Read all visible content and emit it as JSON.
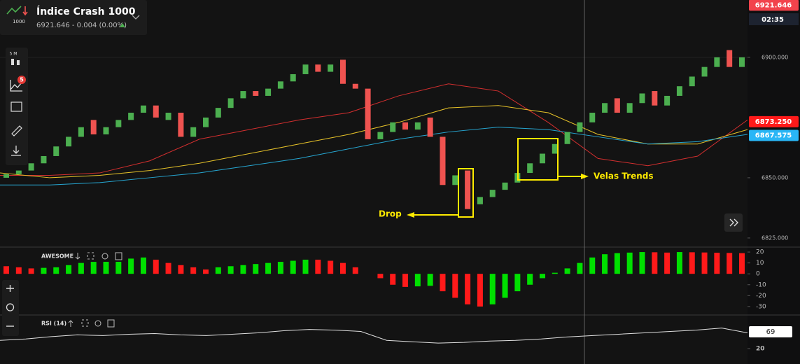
{
  "header": {
    "icon_label": "1000",
    "title": "Índice Crash 1000",
    "quote": "6921.646 - 0.004 (0.00%)"
  },
  "toolbar": {
    "timeframe": "5 M",
    "badge": "5"
  },
  "countdown": "02:35",
  "chart_data": [
    {
      "type": "candlestick",
      "open": [
        6850,
        6851.5,
        6853,
        6856,
        6859,
        6863,
        6867,
        6874,
        6868,
        6871,
        6874,
        6877,
        6880,
        6874,
        6877,
        6867,
        6871,
        6875,
        6879,
        6883,
        6886,
        6884,
        6887,
        6890,
        6893,
        6897,
        6894,
        6899,
        6889,
        6887,
        6866,
        6869,
        6873,
        6870,
        6875,
        6867,
        6847,
        6853,
        6839,
        6842,
        6845,
        6848,
        6852,
        6856,
        6860,
        6864,
        6869,
        6873,
        6877,
        6883,
        6877,
        6881,
        6886,
        6880,
        6884,
        6888,
        6892,
        6896,
        6903,
        6896
      ],
      "close": [
        6851.5,
        6853,
        6856,
        6859,
        6863,
        6867,
        6871,
        6868,
        6871,
        6874,
        6877,
        6880,
        6875,
        6877,
        6867,
        6871,
        6875,
        6879,
        6883,
        6886,
        6884,
        6887,
        6890,
        6893,
        6897,
        6894,
        6897,
        6889,
        6887,
        6866,
        6869,
        6873,
        6870,
        6873,
        6867,
        6847,
        6851,
        6837,
        6842,
        6845,
        6848,
        6852,
        6856,
        6860,
        6864,
        6869,
        6873,
        6877,
        6881,
        6877,
        6881,
        6885,
        6880,
        6884,
        6888,
        6892,
        6896,
        6900,
        6896,
        6900
      ],
      "up_color": "#4caf50",
      "down_color": "#ef5350",
      "lines": [
        {
          "color": "#d32f2f",
          "values": [
            6851,
            6851,
            6852,
            6857,
            6866,
            6870,
            6874,
            6877,
            6884,
            6889,
            6886,
            6873,
            6858,
            6855,
            6859,
            6874
          ]
        },
        {
          "color": "#e6c229",
          "values": [
            6852,
            6850,
            6851,
            6853,
            6856,
            6860,
            6864,
            6868,
            6873,
            6879,
            6880,
            6877,
            6868,
            6864,
            6864,
            6870
          ]
        },
        {
          "color": "#26a6d1",
          "values": [
            6847,
            6847,
            6848,
            6850,
            6852,
            6855,
            6858,
            6862,
            6866,
            6869,
            6871,
            6870,
            6867,
            6864,
            6865,
            6868
          ]
        }
      ],
      "ylim": [
        6821.5,
        6923.8
      ],
      "yticks": [
        {
          "value": 6900,
          "label": "6900.000"
        },
        {
          "value": 6850,
          "label": "6850.000"
        },
        {
          "value": 6825,
          "label": "6825.000"
        }
      ],
      "price_tags": [
        {
          "value": 6921.646,
          "label": "6921.646",
          "color": "#f2434c"
        },
        {
          "value": 6873.25,
          "label": "6873.250",
          "color": "#ff1a1a"
        },
        {
          "value": 6867.575,
          "label": "6867.575",
          "color": "#29b6f6"
        }
      ],
      "annotations": [
        "Drop",
        "Velas Trends"
      ]
    },
    {
      "type": "bar",
      "title": "AWESOME",
      "values": [
        7,
        6,
        5,
        5.5,
        6,
        8,
        10,
        11,
        12,
        13,
        14,
        15,
        13,
        10,
        8,
        6,
        4,
        6,
        7,
        8,
        9,
        10,
        11,
        12,
        13,
        13,
        12,
        10,
        6,
        0,
        -4,
        -10,
        -12,
        -11.5,
        -11,
        -16,
        -22,
        -28,
        -30,
        -28,
        -22,
        -16,
        -10,
        -4,
        1,
        5,
        10,
        15,
        18,
        19,
        19.5,
        20,
        19.8,
        19.5,
        20,
        19.8,
        19.6,
        19.4,
        19.2,
        19
      ],
      "up_color": "#00e000",
      "down_color": "#ff1a1a",
      "ylim": [
        -36.5,
        23.9
      ],
      "yticks": [
        20,
        10,
        0,
        -10,
        -20,
        -30
      ]
    },
    {
      "type": "line",
      "title": "RSI (14)",
      "values": [
        44,
        48,
        55,
        60,
        58,
        62,
        64,
        60,
        58,
        62,
        66,
        72,
        76,
        74,
        70,
        44,
        40,
        36,
        38,
        42,
        44,
        48,
        54,
        58,
        62,
        66,
        70,
        74,
        80,
        66
      ],
      "color": "#e0e0e0",
      "ylim": [
        -25,
        114
      ],
      "yticks": [
        20
      ],
      "current": 69
    }
  ]
}
